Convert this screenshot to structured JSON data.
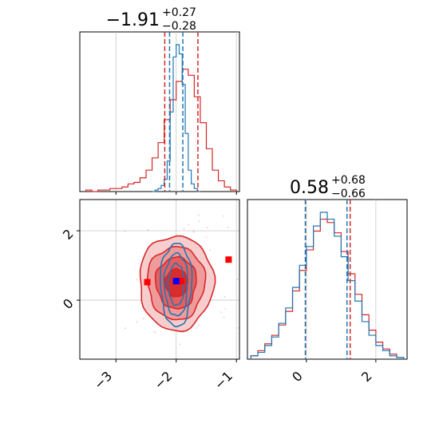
{
  "chart_data": {
    "type": "corner",
    "parameters": [
      {
        "title_value": "−1.91",
        "title_plus": "+0.27",
        "title_minus": "−0.28",
        "median": -1.91,
        "quantiles_red": [
          -2.19,
          -1.64
        ],
        "quantiles_blue": [
          -2.11,
          -1.89
        ],
        "range": [
          -3.6,
          -0.95
        ],
        "ticks": [
          -3,
          -2,
          -1
        ],
        "tick_labels": [
          "−3",
          "−2",
          "−1"
        ]
      },
      {
        "title_value": "0.58",
        "title_plus": "+0.68",
        "title_minus": "−0.66",
        "median": 0.58,
        "quantiles_red": [
          -0.03,
          1.26
        ],
        "quantiles_blue": [
          -0.03,
          1.17
        ],
        "range": [
          -1.7,
          2.9
        ],
        "ticks": [
          0,
          2
        ],
        "tick_labels": [
          "0",
          "2"
        ]
      }
    ],
    "series": [
      {
        "name": "",
        "color": "#d62728",
        "hist_x_bins": [
          -3.5,
          -3.4,
          -3.3,
          -3.2,
          -3.1,
          -3.0,
          -2.9,
          -2.8,
          -2.7,
          -2.6,
          -2.5,
          -2.4,
          -2.3,
          -2.2,
          -2.1,
          -2.0,
          -1.9,
          -1.8,
          -1.7,
          -1.6,
          -1.5,
          -1.4,
          -1.3,
          -1.2,
          -1.1,
          -1.0
        ],
        "hist_x_counts": [
          1,
          0,
          1,
          1,
          2,
          2,
          3,
          5,
          6,
          9,
          14,
          22,
          32,
          47,
          60,
          72,
          80,
          76,
          62,
          45,
          28,
          14,
          7,
          3,
          1
        ],
        "hist_y_bins": [
          -1.6,
          -1.4,
          -1.2,
          -1.0,
          -0.8,
          -0.6,
          -0.4,
          -0.2,
          0.0,
          0.2,
          0.4,
          0.6,
          0.8,
          1.0,
          1.2,
          1.4,
          1.6,
          1.8,
          2.0,
          2.2,
          2.4,
          2.6,
          2.8
        ],
        "hist_y_counts": [
          2,
          5,
          9,
          14,
          20,
          28,
          40,
          52,
          64,
          75,
          82,
          80,
          74,
          63,
          50,
          38,
          26,
          17,
          10,
          6,
          3,
          1
        ],
        "contour_center": [
          -2.0,
          0.5
        ],
        "contour_sigma": [
          0.28,
          0.62
        ],
        "markers": [
          [
            -2.48,
            0.52
          ],
          [
            -1.92,
            0.55
          ],
          [
            -1.13,
            1.17
          ]
        ]
      },
      {
        "name": "",
        "color": "#1f77b4",
        "hist_x_bins": [
          -2.4,
          -2.35,
          -2.3,
          -2.25,
          -2.2,
          -2.15,
          -2.1,
          -2.05,
          -2.0,
          -1.95,
          -1.9,
          -1.85,
          -1.8,
          -1.75,
          -1.7,
          -1.65,
          -1.6
        ],
        "hist_x_counts": [
          0,
          1,
          2,
          4,
          8,
          20,
          52,
          88,
          96,
          90,
          70,
          38,
          14,
          5,
          2,
          0
        ],
        "hist_y_bins": [
          -1.6,
          -1.4,
          -1.2,
          -1.0,
          -0.8,
          -0.6,
          -0.4,
          -0.2,
          0.0,
          0.2,
          0.4,
          0.6,
          0.8,
          1.0,
          1.2,
          1.4,
          1.6,
          1.8,
          2.0,
          2.2,
          2.4,
          2.6,
          2.8
        ],
        "hist_y_counts": [
          2,
          4,
          8,
          13,
          21,
          30,
          42,
          55,
          66,
          78,
          86,
          82,
          72,
          60,
          46,
          34,
          22,
          14,
          8,
          5,
          2,
          1
        ],
        "contour_center": [
          -2.0,
          0.45
        ],
        "contour_sigma": [
          0.1,
          0.6
        ],
        "markers": [
          [
            -2.0,
            0.55
          ]
        ]
      }
    ],
    "grid": true
  }
}
